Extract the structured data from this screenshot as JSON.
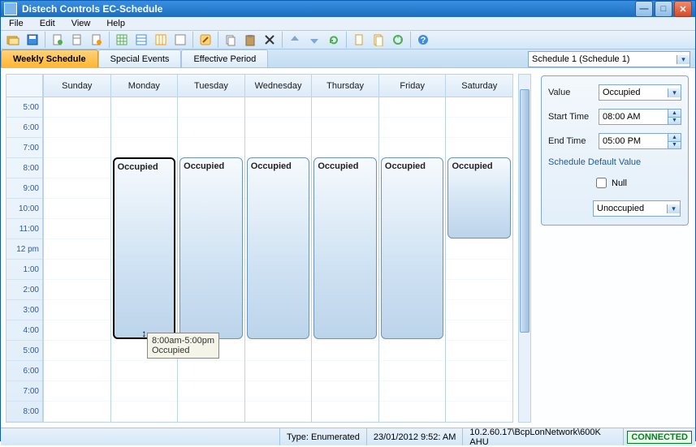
{
  "window": {
    "title": "Distech Controls EC-Schedule"
  },
  "menu": {
    "file": "File",
    "edit": "Edit",
    "view": "View",
    "help": "Help"
  },
  "tabs": {
    "weekly": "Weekly Schedule",
    "special": "Special Events",
    "effective": "Effective Period"
  },
  "schedule_combo": "Schedule 1 (Schedule 1)",
  "time_slots": [
    "5:00",
    "6:00",
    "7:00",
    "8:00",
    "9:00",
    "10:00",
    "11:00",
    "12 pm",
    "1:00",
    "2:00",
    "3:00",
    "4:00",
    "5:00",
    "6:00",
    "7:00",
    "8:00"
  ],
  "days": [
    "Sunday",
    "Monday",
    "Tuesday",
    "Wednesday",
    "Thursday",
    "Friday",
    "Saturday"
  ],
  "event_label": "Occupied",
  "events": {
    "monday": {
      "top_pct": 18.5,
      "height_pct": 56,
      "active": true
    },
    "tuesday": {
      "top_pct": 18.5,
      "height_pct": 56,
      "active": false
    },
    "wednesday": {
      "top_pct": 18.5,
      "height_pct": 56,
      "active": false
    },
    "thursday": {
      "top_pct": 18.5,
      "height_pct": 56,
      "active": false
    },
    "friday": {
      "top_pct": 18.5,
      "height_pct": 56,
      "active": false
    },
    "saturday": {
      "top_pct": 18.5,
      "height_pct": 25,
      "active": false
    }
  },
  "tooltip": {
    "line1": "8:00am-5:00pm",
    "line2": "Occupied"
  },
  "side": {
    "value_label": "Value",
    "value": "Occupied",
    "start_label": "Start Time",
    "start": "08:00 AM",
    "end_label": "End Time",
    "end": "05:00 PM",
    "default_header": "Schedule Default Value",
    "null_label": "Null",
    "default_value": "Unoccupied"
  },
  "status": {
    "type": "Type: Enumerated",
    "datetime": "23/01/2012 9:52: AM",
    "path": "10.2.60.17\\BcpLonNetwork\\600K AHU",
    "connected": "CONNECTED"
  },
  "colors": {
    "accent": "#1a6dc0",
    "event_border": "#6a93bd",
    "event_active_border": "#000000",
    "tab_active_bg1": "#ffd27a",
    "tab_active_bg2": "#ffb733"
  }
}
